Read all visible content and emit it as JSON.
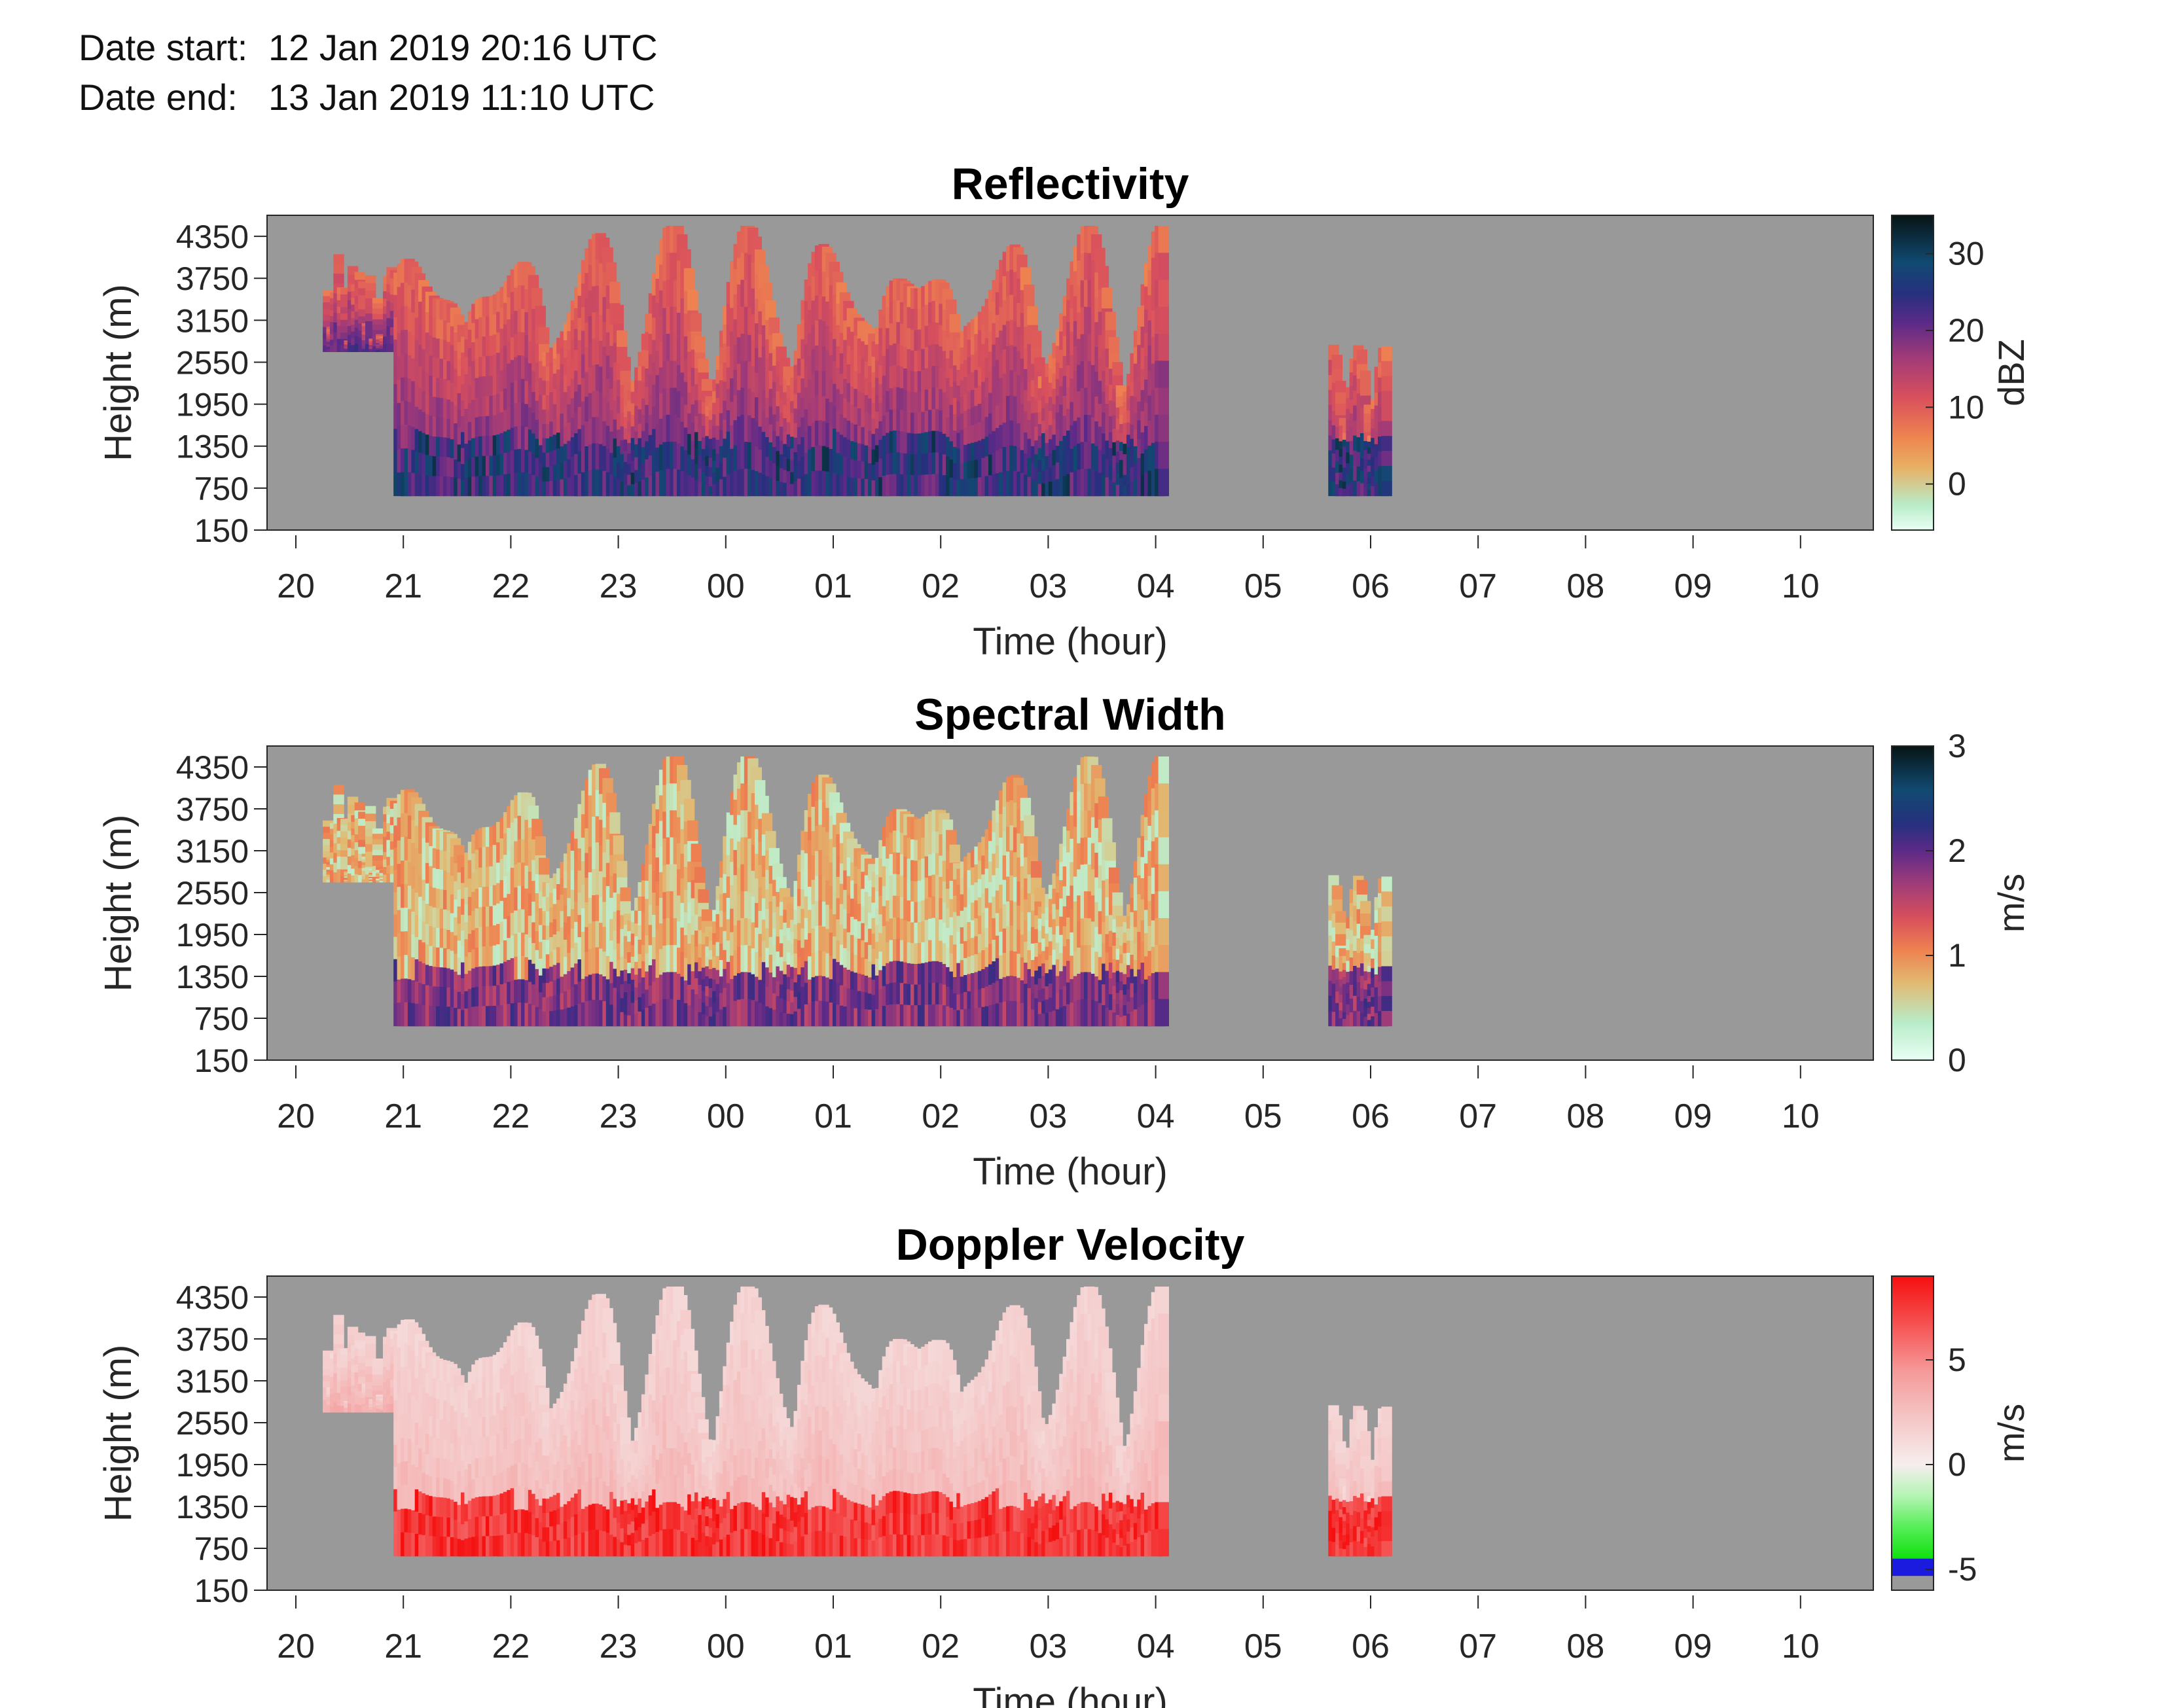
{
  "header": {
    "start_label": "Date start:",
    "start_value": "12 Jan 2019 20:16 UTC",
    "end_label": "Date end:",
    "end_value": "13 Jan 2019 11:10 UTC"
  },
  "chart_data": [
    {
      "type": "heatmap",
      "title": "Reflectivity",
      "xlabel": "Time (hour)",
      "ylabel": "Height (m)",
      "x_ticks": [
        "20",
        "21",
        "22",
        "23",
        "00",
        "01",
        "02",
        "03",
        "04",
        "05",
        "06",
        "07",
        "08",
        "09",
        "10"
      ],
      "y_ticks": [
        4350,
        3750,
        3150,
        2550,
        1950,
        1350,
        750,
        150
      ],
      "ylim": [
        150,
        4650
      ],
      "colorbar": {
        "label": "dBZ",
        "ticks": [
          30,
          20,
          10,
          0
        ],
        "range": [
          -6,
          35
        ]
      },
      "background_color": "#999999"
    },
    {
      "type": "heatmap",
      "title": "Spectral Width",
      "xlabel": "Time (hour)",
      "ylabel": "Height (m)",
      "x_ticks": [
        "20",
        "21",
        "22",
        "23",
        "00",
        "01",
        "02",
        "03",
        "04",
        "05",
        "06",
        "07",
        "08",
        "09",
        "10"
      ],
      "y_ticks": [
        4350,
        3750,
        3150,
        2550,
        1950,
        1350,
        750,
        150
      ],
      "ylim": [
        150,
        4650
      ],
      "colorbar": {
        "label": "m/s",
        "ticks": [
          3,
          2,
          1,
          0
        ],
        "range": [
          0,
          3
        ]
      },
      "background_color": "#999999"
    },
    {
      "type": "heatmap",
      "title": "Doppler Velocity",
      "xlabel": "Time (hour)",
      "ylabel": "Height (m)",
      "x_ticks": [
        "20",
        "21",
        "22",
        "23",
        "00",
        "01",
        "02",
        "03",
        "04",
        "05",
        "06",
        "07",
        "08",
        "09",
        "10"
      ],
      "y_ticks": [
        4350,
        3750,
        3150,
        2550,
        1950,
        1350,
        750,
        150
      ],
      "ylim": [
        150,
        4650
      ],
      "colorbar": {
        "label": "m/s",
        "ticks": [
          "5",
          "0",
          "-5"
        ],
        "range": [
          -6,
          9
        ]
      },
      "background_color": "#999999"
    }
  ]
}
